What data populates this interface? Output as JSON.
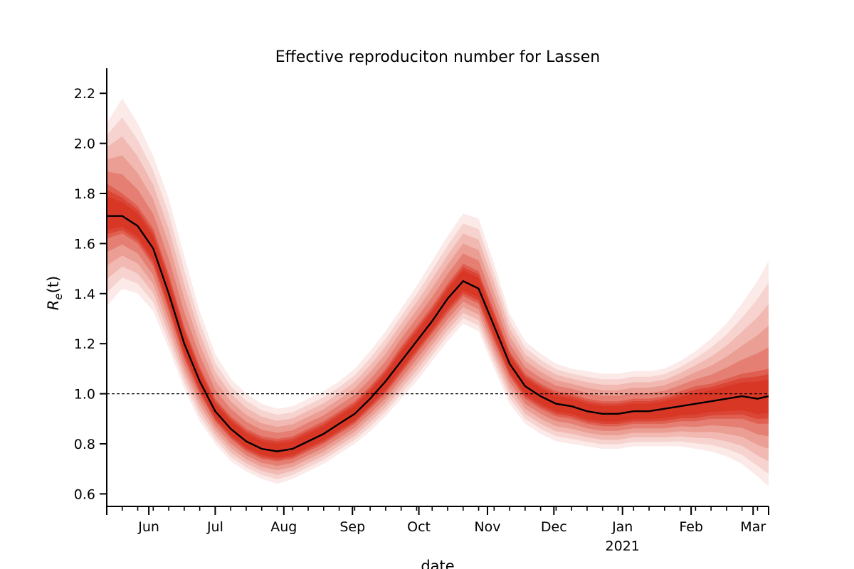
{
  "chart_data": {
    "type": "line",
    "title": "Effective reproduciton number for Lassen",
    "xlabel": "date",
    "ylabel": "R_e(t)",
    "ylim": [
      0.55,
      2.3
    ],
    "xlim": [
      "2020-05-13",
      "2021-03-08"
    ],
    "y_ticks": [
      0.6,
      0.8,
      1.0,
      1.2,
      1.4,
      1.6,
      1.8,
      2.0,
      2.2
    ],
    "y_tick_labels": [
      "0.6",
      "0.8",
      "1.0",
      "1.2",
      "1.4",
      "1.6",
      "1.8",
      "2.0",
      "2.2"
    ],
    "x_ticks": [
      {
        "date": "2020-06-01",
        "label": "Jun"
      },
      {
        "date": "2020-07-01",
        "label": "Jul"
      },
      {
        "date": "2020-08-01",
        "label": "Aug"
      },
      {
        "date": "2020-09-01",
        "label": "Sep"
      },
      {
        "date": "2020-10-01",
        "label": "Oct"
      },
      {
        "date": "2020-11-01",
        "label": "Nov"
      },
      {
        "date": "2020-12-01",
        "label": "Dec"
      },
      {
        "date": "2021-01-01",
        "label": "Jan",
        "sublabel": "2021"
      },
      {
        "date": "2021-02-01",
        "label": "Feb"
      },
      {
        "date": "2021-03-01",
        "label": "Mar"
      }
    ],
    "reference_line": {
      "y": 1.0,
      "style": "dashed",
      "color": "#000000"
    },
    "colors": {
      "line": "#000000",
      "band": "#d7301f"
    },
    "grid": false,
    "series": [
      {
        "x": [
          "2020-05-13",
          "2020-05-20",
          "2020-05-27",
          "2020-06-03",
          "2020-06-10",
          "2020-06-17",
          "2020-06-24",
          "2020-07-01",
          "2020-07-08",
          "2020-07-15",
          "2020-07-22",
          "2020-07-29",
          "2020-08-05",
          "2020-08-12",
          "2020-08-19",
          "2020-08-26",
          "2020-09-02",
          "2020-09-09",
          "2020-09-16",
          "2020-09-23",
          "2020-09-30",
          "2020-10-07",
          "2020-10-14",
          "2020-10-21",
          "2020-10-28",
          "2020-11-04",
          "2020-11-11",
          "2020-11-18",
          "2020-11-25",
          "2020-12-02",
          "2020-12-09",
          "2020-12-16",
          "2020-12-23",
          "2020-12-30",
          "2021-01-06",
          "2021-01-13",
          "2021-01-20",
          "2021-01-27",
          "2021-02-03",
          "2021-02-10",
          "2021-02-17",
          "2021-02-24",
          "2021-03-03",
          "2021-03-08"
        ],
        "values": [
          1.71,
          1.71,
          1.67,
          1.58,
          1.4,
          1.2,
          1.05,
          0.93,
          0.86,
          0.81,
          0.78,
          0.77,
          0.78,
          0.81,
          0.84,
          0.88,
          0.92,
          0.98,
          1.05,
          1.13,
          1.21,
          1.29,
          1.38,
          1.45,
          1.42,
          1.27,
          1.12,
          1.03,
          0.99,
          0.96,
          0.95,
          0.93,
          0.92,
          0.92,
          0.93,
          0.93,
          0.94,
          0.95,
          0.96,
          0.97,
          0.98,
          0.99,
          0.98,
          0.99
        ],
        "band_inner_low": [
          1.62,
          1.64,
          1.6,
          1.51,
          1.33,
          1.14,
          1.0,
          0.89,
          0.82,
          0.77,
          0.74,
          0.73,
          0.74,
          0.77,
          0.8,
          0.84,
          0.88,
          0.94,
          1.0,
          1.08,
          1.16,
          1.24,
          1.32,
          1.39,
          1.36,
          1.21,
          1.07,
          0.98,
          0.94,
          0.91,
          0.9,
          0.88,
          0.87,
          0.87,
          0.88,
          0.88,
          0.88,
          0.89,
          0.89,
          0.9,
          0.9,
          0.9,
          0.88,
          0.88
        ],
        "band_inner_high": [
          1.84,
          1.8,
          1.75,
          1.66,
          1.48,
          1.27,
          1.11,
          0.98,
          0.91,
          0.86,
          0.83,
          0.82,
          0.83,
          0.86,
          0.89,
          0.93,
          0.97,
          1.03,
          1.1,
          1.19,
          1.27,
          1.35,
          1.44,
          1.52,
          1.49,
          1.33,
          1.17,
          1.08,
          1.04,
          1.01,
          1.0,
          0.98,
          0.97,
          0.97,
          0.98,
          0.98,
          0.99,
          1.01,
          1.03,
          1.04,
          1.06,
          1.08,
          1.09,
          1.1
        ],
        "band_outer_low": [
          1.35,
          1.42,
          1.4,
          1.33,
          1.18,
          1.02,
          0.89,
          0.8,
          0.73,
          0.69,
          0.66,
          0.64,
          0.66,
          0.69,
          0.72,
          0.76,
          0.8,
          0.85,
          0.91,
          0.98,
          1.05,
          1.13,
          1.21,
          1.28,
          1.25,
          1.1,
          0.96,
          0.88,
          0.84,
          0.81,
          0.8,
          0.79,
          0.78,
          0.78,
          0.79,
          0.79,
          0.79,
          0.79,
          0.78,
          0.77,
          0.75,
          0.72,
          0.67,
          0.63
        ],
        "band_outer_high": [
          2.08,
          2.18,
          2.08,
          1.95,
          1.78,
          1.55,
          1.33,
          1.16,
          1.06,
          1.0,
          0.96,
          0.94,
          0.95,
          0.98,
          1.01,
          1.05,
          1.1,
          1.17,
          1.25,
          1.34,
          1.43,
          1.53,
          1.63,
          1.72,
          1.7,
          1.52,
          1.32,
          1.21,
          1.16,
          1.12,
          1.1,
          1.09,
          1.08,
          1.08,
          1.09,
          1.09,
          1.1,
          1.13,
          1.17,
          1.22,
          1.28,
          1.36,
          1.45,
          1.53
        ]
      }
    ]
  }
}
